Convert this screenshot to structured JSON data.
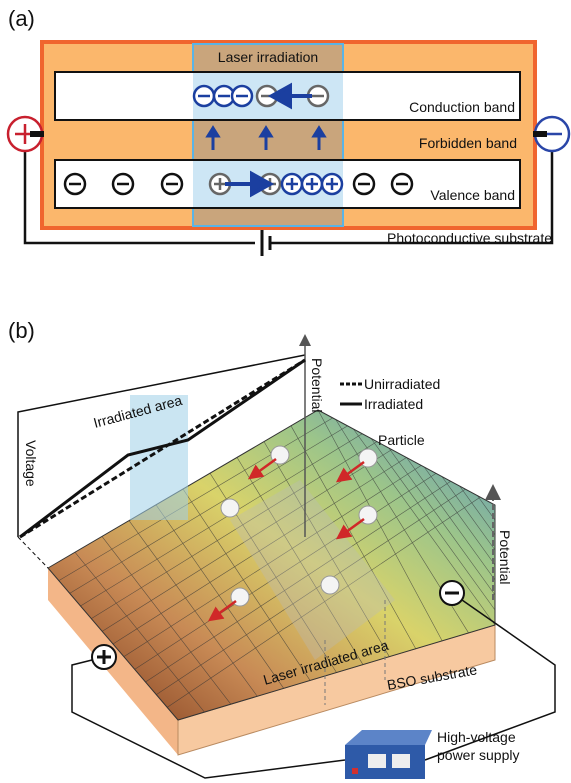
{
  "panel_a": {
    "label": "(a)",
    "laser_label": "Laser irradiation",
    "conduction_band": "Conduction band",
    "forbidden_band": "Forbidden band",
    "valence_band": "Valence band",
    "substrate": "Photoconductive substrate"
  },
  "panel_b": {
    "label": "(b)",
    "potential_left": "Potential",
    "legend": [
      "Unirradiated",
      "Irradiated"
    ],
    "irradiated_area": "Irradiated area",
    "voltage": "Voltage",
    "particle": "Particle",
    "potential_right": "Potential",
    "laser_area": "Laser irradiated area",
    "substrate": "BSO substrate",
    "power_supply": [
      "High-voltage",
      "power supply"
    ]
  }
}
